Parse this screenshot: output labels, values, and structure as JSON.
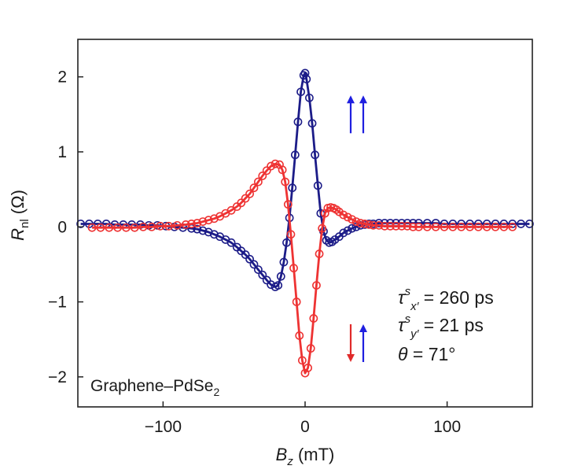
{
  "chart_data": {
    "type": "scatter",
    "xlim": [
      -160,
      160
    ],
    "ylim": [
      -2.4,
      2.5
    ],
    "x_ticks": [
      -100,
      0,
      100
    ],
    "y_ticks": [
      -2,
      -1,
      0,
      1,
      2
    ],
    "x_tick_labels": [
      "−100",
      "0",
      "100"
    ],
    "y_tick_labels": [
      "−2",
      "−1",
      "0",
      "1",
      "2"
    ],
    "xlabel": {
      "main": "B",
      "sub": "z",
      "unit": " (mT)"
    },
    "ylabel": {
      "main": "R",
      "sub": "nl",
      "unit": " (Ω)"
    },
    "sample_label": {
      "main": "Graphene–PdSe",
      "sub": "2"
    },
    "annotations": [
      {
        "sym": "τ",
        "sup": "s",
        "sub": "x′",
        "rest": " = 260 ps"
      },
      {
        "sym": "τ",
        "sup": "s",
        "sub": "y′",
        "rest": " = 21 ps"
      },
      {
        "sym": "θ",
        "sup": "",
        "sub": "",
        "rest": " = 71°"
      }
    ],
    "arrow_legend": [
      {
        "arrows": [
          "up",
          "up"
        ],
        "colors": [
          "#1f1fe0",
          "#1f1fe0"
        ],
        "y": 1.5
      },
      {
        "arrows": [
          "down",
          "up"
        ],
        "colors": [
          "#e02a2a",
          "#1f1fe0"
        ],
        "y": -1.55
      }
    ],
    "grid": false,
    "series": [
      {
        "color": "#1c1c88",
        "x": [
          -158,
          -152,
          -146,
          -140,
          -134,
          -128,
          -122,
          -116,
          -110,
          -104,
          -98,
          -92,
          -86,
          -80,
          -76,
          -72,
          -68,
          -64,
          -60,
          -56,
          -52,
          -48,
          -45,
          -42,
          -39,
          -36,
          -33,
          -30,
          -27,
          -24,
          -21,
          -19,
          -17,
          -15,
          -13,
          -11,
          -9,
          -7,
          -5,
          -3,
          -1,
          0,
          1,
          3,
          5,
          7,
          9,
          11,
          13,
          15,
          17,
          19,
          21,
          24,
          27,
          30,
          33,
          36,
          39,
          42,
          45,
          48,
          52,
          56,
          60,
          64,
          68,
          72,
          76,
          80,
          86,
          92,
          98,
          104,
          110,
          116,
          122,
          128,
          134,
          140,
          146,
          152,
          158
        ],
        "y": [
          0.04,
          0.04,
          0.04,
          0.04,
          0.03,
          0.03,
          0.03,
          0.03,
          0.02,
          0.02,
          0.01,
          0.0,
          -0.01,
          -0.02,
          -0.03,
          -0.05,
          -0.07,
          -0.1,
          -0.13,
          -0.17,
          -0.21,
          -0.27,
          -0.32,
          -0.37,
          -0.43,
          -0.5,
          -0.57,
          -0.64,
          -0.71,
          -0.77,
          -0.8,
          -0.78,
          -0.66,
          -0.47,
          -0.21,
          0.12,
          0.52,
          0.96,
          1.4,
          1.8,
          2.02,
          2.05,
          1.97,
          1.72,
          1.38,
          0.96,
          0.55,
          0.18,
          -0.06,
          -0.18,
          -0.21,
          -0.2,
          -0.17,
          -0.13,
          -0.08,
          -0.05,
          -0.02,
          0.0,
          0.02,
          0.03,
          0.04,
          0.04,
          0.05,
          0.05,
          0.05,
          0.05,
          0.05,
          0.05,
          0.05,
          0.05,
          0.05,
          0.05,
          0.04,
          0.04,
          0.04,
          0.04,
          0.04,
          0.04,
          0.04,
          0.04,
          0.04,
          0.04,
          0.04
        ]
      },
      {
        "color": "#ee3333",
        "x": [
          -150,
          -144,
          -138,
          -132,
          -126,
          -120,
          -114,
          -108,
          -102,
          -96,
          -90,
          -84,
          -80,
          -76,
          -72,
          -68,
          -64,
          -60,
          -56,
          -52,
          -48,
          -45,
          -42,
          -39,
          -36,
          -33,
          -30,
          -27,
          -24,
          -21,
          -18,
          -16,
          -14,
          -12,
          -10,
          -8,
          -6,
          -4,
          -2,
          0,
          2,
          4,
          6,
          8,
          10,
          12,
          14,
          16,
          18,
          20,
          22,
          24,
          27,
          30,
          33,
          36,
          39,
          42,
          45,
          48,
          52,
          56,
          60,
          64,
          68,
          72,
          76,
          80,
          86,
          92,
          98,
          104,
          110,
          116,
          122,
          128,
          134,
          140,
          146
        ],
        "y": [
          -0.01,
          -0.01,
          -0.01,
          -0.01,
          -0.01,
          -0.01,
          0.0,
          0.0,
          0.01,
          0.01,
          0.02,
          0.03,
          0.04,
          0.05,
          0.07,
          0.09,
          0.11,
          0.14,
          0.18,
          0.22,
          0.27,
          0.32,
          0.38,
          0.44,
          0.52,
          0.6,
          0.68,
          0.75,
          0.81,
          0.84,
          0.83,
          0.76,
          0.6,
          0.3,
          -0.1,
          -0.55,
          -1.0,
          -1.45,
          -1.78,
          -1.95,
          -1.88,
          -1.62,
          -1.22,
          -0.78,
          -0.36,
          -0.02,
          0.18,
          0.25,
          0.26,
          0.25,
          0.23,
          0.2,
          0.16,
          0.13,
          0.1,
          0.07,
          0.05,
          0.04,
          0.03,
          0.02,
          0.02,
          0.01,
          0.01,
          0.01,
          0.01,
          0.01,
          0.0,
          0.0,
          0.0,
          0.0,
          0.0,
          0.0,
          0.0,
          0.0,
          0.0,
          0.0,
          0.0,
          0.0,
          0.0
        ]
      }
    ]
  }
}
